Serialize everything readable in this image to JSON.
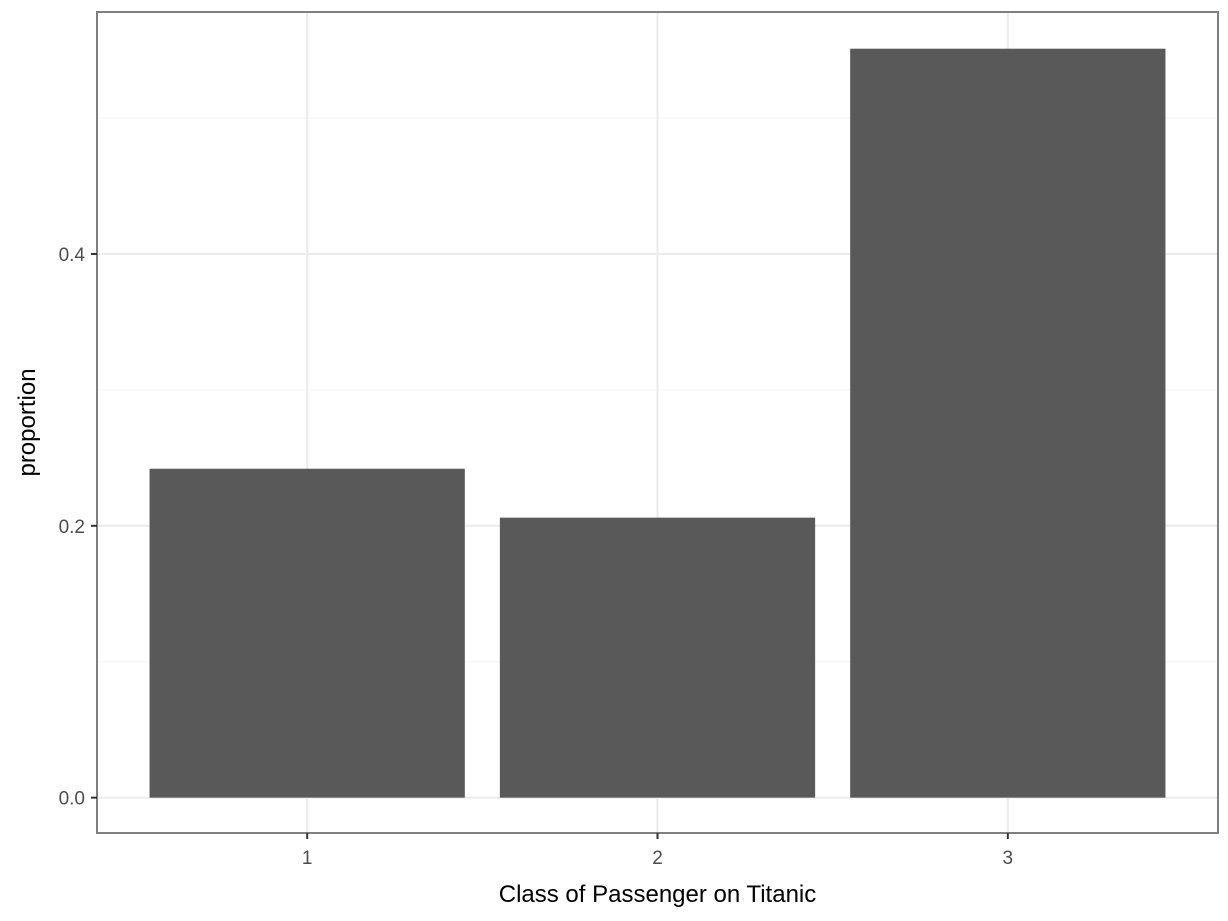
{
  "chart_data": {
    "type": "bar",
    "categories": [
      "1",
      "2",
      "3"
    ],
    "values": [
      0.242,
      0.206,
      0.551
    ],
    "xlabel": "Class of Passenger on Titanic",
    "ylabel": "proportion",
    "ylim": [
      -0.026,
      0.578
    ],
    "yticks": [
      0.0,
      0.2,
      0.4
    ],
    "ytick_labels": [
      "0.0",
      "0.2",
      "0.4"
    ],
    "grid": true,
    "legend": "none",
    "colors": {
      "bar": "#595959",
      "panel_border": "#7f7f7f",
      "grid_major": "#ebebeb",
      "grid_minor": "#f5f5f5",
      "tick_label": "#4d4d4d",
      "axis_title": "#000000"
    }
  }
}
